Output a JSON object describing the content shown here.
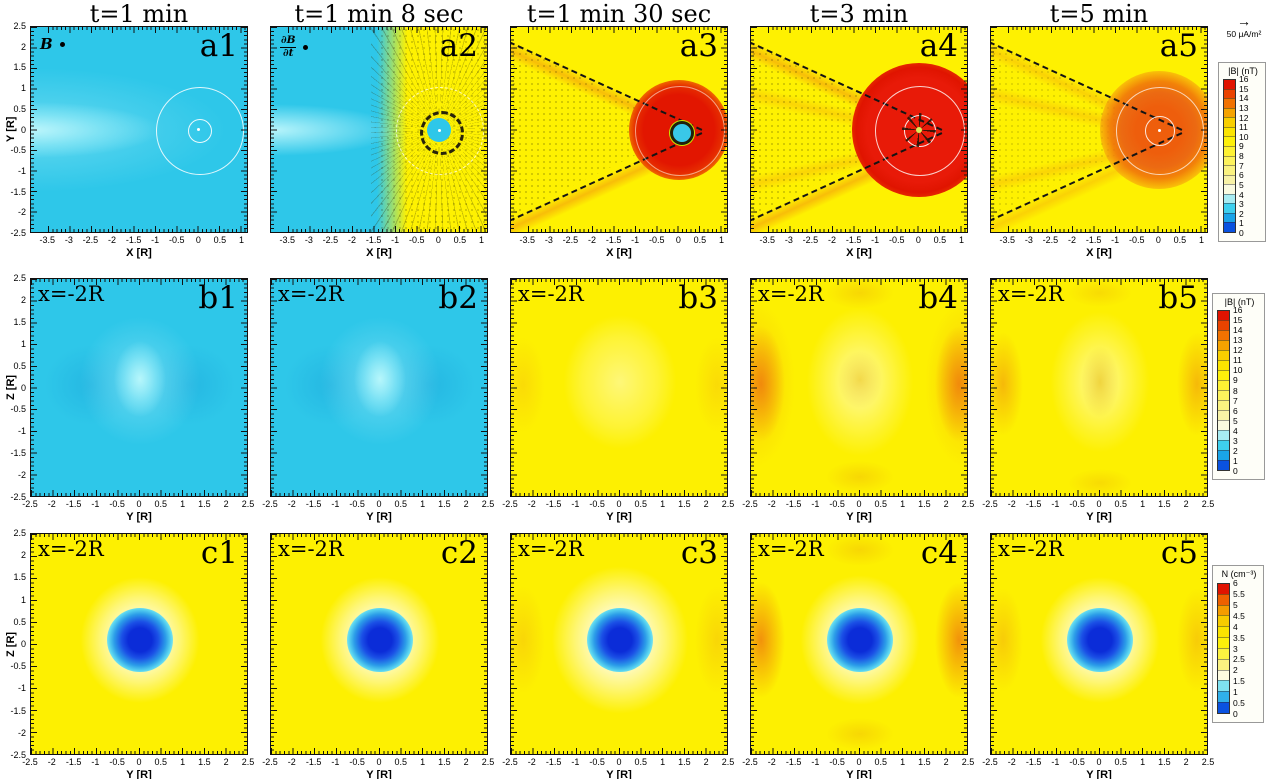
{
  "titles": [
    "t=1 min",
    "t=1 min 8 sec",
    "t=1 min 30 sec",
    "t=3 min",
    "t=5 min"
  ],
  "rows": [
    {
      "id": "a",
      "ylabel": "Y [R]",
      "xlabel": "X [R]",
      "yticks": [
        "2.5",
        "2",
        "1.5",
        "1",
        "0.5",
        "0",
        "-0.5",
        "-1",
        "-1.5",
        "-2",
        "-2.5"
      ],
      "xticks": [
        "-3.5",
        "-3",
        "-2.5",
        "-2",
        "-1.5",
        "-1",
        "-0.5",
        "0",
        "0.5",
        "1"
      ],
      "x_range": [
        -3.9,
        1.15
      ],
      "y_range": [
        -2.5,
        2.5
      ],
      "panels": [
        {
          "label": "a1",
          "corner": "B"
        },
        {
          "label": "a2",
          "corner_frac_top": "∂B",
          "corner_frac_bottom": "∂t"
        },
        {
          "label": "a3"
        },
        {
          "label": "a4"
        },
        {
          "label": "a5"
        }
      ]
    },
    {
      "id": "b",
      "ylabel": "Z [R]",
      "xlabel": "Y [R]",
      "yticks": [
        "2.5",
        "2",
        "1.5",
        "1",
        "0.5",
        "0",
        "-0.5",
        "-1",
        "-1.5",
        "-2",
        "-2.5"
      ],
      "xticks": [
        "-2.5",
        "-2",
        "-1.5",
        "-1",
        "-0.5",
        "0",
        "0.5",
        "1",
        "1.5",
        "2",
        "2.5"
      ],
      "x_range": [
        -2.5,
        2.5
      ],
      "y_range": [
        -2.5,
        2.5
      ],
      "panels": [
        {
          "label": "b1",
          "corner": "x=-2R"
        },
        {
          "label": "b2",
          "corner": "x=-2R"
        },
        {
          "label": "b3",
          "corner": "x=-2R"
        },
        {
          "label": "b4",
          "corner": "x=-2R"
        },
        {
          "label": "b5",
          "corner": "x=-2R"
        }
      ]
    },
    {
      "id": "c",
      "ylabel": "Z [R]",
      "xlabel": "Y [R]",
      "yticks": [
        "2.5",
        "2",
        "1.5",
        "1",
        "0.5",
        "0",
        "-0.5",
        "-1",
        "-1.5",
        "-2",
        "-2.5"
      ],
      "xticks": [
        "-2.5",
        "-2",
        "-1.5",
        "-1",
        "-0.5",
        "0",
        "0.5",
        "1",
        "1.5",
        "2",
        "2.5"
      ],
      "x_range": [
        -2.5,
        2.5
      ],
      "y_range": [
        -2.5,
        2.5
      ],
      "panels": [
        {
          "label": "c1",
          "corner": "x=-2R"
        },
        {
          "label": "c2",
          "corner": "x=-2R"
        },
        {
          "label": "c3",
          "corner": "x=-2R"
        },
        {
          "label": "c4",
          "corner": "x=-2R"
        },
        {
          "label": "c5",
          "corner": "x=-2R"
        }
      ]
    }
  ],
  "vector_legend": {
    "arrow": "→",
    "label": "50 μA/m²"
  },
  "colorbars": [
    {
      "for_row": "a",
      "title": "|B| (nT)",
      "tick_labels": [
        "16",
        "15",
        "14",
        "13",
        "12",
        "11",
        "10",
        "9",
        "8",
        "7",
        "6",
        "5",
        "4",
        "3",
        "2",
        "1",
        "0"
      ],
      "segment_colors": [
        "#e01300",
        "#ea4300",
        "#f17201",
        "#f5a300",
        "#f8cf00",
        "#fbe400",
        "#fdf00a",
        "#fdf133",
        "#fcf25c",
        "#faf280",
        "#f8f2a6",
        "#fafae0",
        "#a8ecf2",
        "#3ed0ee",
        "#1aa4e8",
        "#0a52e0"
      ]
    },
    {
      "for_row": "b",
      "title": "|B| (nT)",
      "tick_labels": [
        "16",
        "15",
        "14",
        "13",
        "12",
        "11",
        "10",
        "9",
        "8",
        "7",
        "6",
        "5",
        "4",
        "3",
        "2",
        "1",
        "0"
      ],
      "segment_colors": [
        "#e01300",
        "#ea4300",
        "#f17201",
        "#f5a300",
        "#f8cf00",
        "#fbe400",
        "#fdf00a",
        "#fdf133",
        "#fcf25c",
        "#faf280",
        "#f8f2a6",
        "#fafae0",
        "#a8ecf2",
        "#3ed0ee",
        "#1aa4e8",
        "#0a52e0"
      ]
    },
    {
      "for_row": "c",
      "title": "N (cm⁻³)",
      "tick_labels": [
        "6",
        "5.5",
        "5",
        "4.5",
        "4",
        "3.5",
        "3",
        "2.5",
        "2",
        "1.5",
        "1",
        "0.5",
        "0"
      ],
      "segment_colors": [
        "#e01300",
        "#ee6000",
        "#f49c00",
        "#f7cb00",
        "#fae300",
        "#fdf00a",
        "#fcf240",
        "#faf280",
        "#fdfbe0",
        "#7fe2f0",
        "#2fb0ea",
        "#0a52e0"
      ]
    }
  ],
  "chart_data": [
    {
      "type": "heatmap",
      "row": "a",
      "plane": "x-y plane",
      "quantity": "|B| magnetic field magnitude (nT)",
      "xlabel": "X [R]",
      "ylabel": "Y [R]",
      "x_range": [
        -3.9,
        1.15
      ],
      "y_range": [
        -2.5,
        2.5
      ],
      "color_range": [
        0,
        16
      ],
      "times": [
        "t=1 min",
        "t=1 min 8 sec",
        "t=1 min 30 sec",
        "t=3 min",
        "t=5 min"
      ],
      "panels": [
        {
          "label": "a1",
          "time": "t=1 min",
          "features": "uniform cyan field ~3 nT; brighter wake band along y=0 extending to -x; thin white circles r~1R and r~0.25R centered at origin; bold-italic B vector-key with black dot"
        },
        {
          "label": "a2",
          "time": "t=1 min 8 sec",
          "features": "left half cyan ~3 nT, right half yellow ~11 nT; radial ray pattern of dB/dt vectors emanating from origin; cyan core r~0.3R ringed by black vectors; faint white dashed circle r~1R; dB/dt key with black dot"
        },
        {
          "label": "a3",
          "time": "t=1 min 30 sec",
          "features": "yellow ~11 nT background; red compressed shell ~16 nT of radius ~1R around origin with dark ring and cyan core; black dashed Mach cone opening toward -x; orange streaks along cone edges; dotted vector texture inside cone"
        },
        {
          "label": "a4",
          "time": "t=3 min",
          "features": "largest red region ~16 nT radius ~1.3R; white circle r~1R and small white circle r~0.3R; black vector star at center with yellow-green dot; strong orange streaks along dashed cone"
        },
        {
          "label": "a5",
          "time": "t=5 min",
          "features": "decaying orange-red region ~14-15 nT radius ~1R; white circles r~1R and r~0.3R with white center dot; fading dashed cone and streaks"
        }
      ]
    },
    {
      "type": "heatmap",
      "row": "b",
      "plane": "y-z plane at x=-2R",
      "quantity": "|B| magnetic field magnitude (nT)",
      "xlabel": "Y [R]",
      "ylabel": "Z [R]",
      "x_range": [
        -2.5,
        2.5
      ],
      "y_range": [
        -2.5,
        2.5
      ],
      "color_range": [
        0,
        16
      ],
      "panels": [
        {
          "label": "b1",
          "features": "uniform cyan ~3 nT; bright vertical ellipse at center; slightly darker blue lobes at y~±0.8R"
        },
        {
          "label": "b2",
          "features": "nearly identical to b1"
        },
        {
          "label": "b3",
          "features": "yellow ~11 nT; faint pale oval halo r~1.5R around center"
        },
        {
          "label": "b4",
          "features": "yellow with orange crescent arcs ~13 nT near y=±2R; pale central oval with slightly darker inner patch"
        },
        {
          "label": "b5",
          "features": "yellow; weakened orange arcs; darker vertical oval at center inside pale halo"
        }
      ]
    },
    {
      "type": "heatmap",
      "row": "c",
      "plane": "y-z plane at x=-2R",
      "quantity": "N plasma density (cm^-3)",
      "xlabel": "Y [R]",
      "ylabel": "Z [R]",
      "x_range": [
        -2.5,
        2.5
      ],
      "y_range": [
        -2.5,
        2.5
      ],
      "color_range": [
        0,
        6
      ],
      "panels": [
        {
          "label": "c1",
          "features": "yellow ~4.5 background; pale halo r~1.2R; deep-blue density cavity ~0.5 of radius ~0.55R with cyan rim"
        },
        {
          "label": "c2",
          "features": "cavity unchanged from c1"
        },
        {
          "label": "c3",
          "features": "cavity with slightly enlarged pale halo and very faint side arcs"
        },
        {
          "label": "c4",
          "features": "cavity plus orange compression arcs ~5.5 near y=±2R"
        },
        {
          "label": "c5",
          "features": "cavity; compression arcs weakened"
        }
      ]
    }
  ]
}
